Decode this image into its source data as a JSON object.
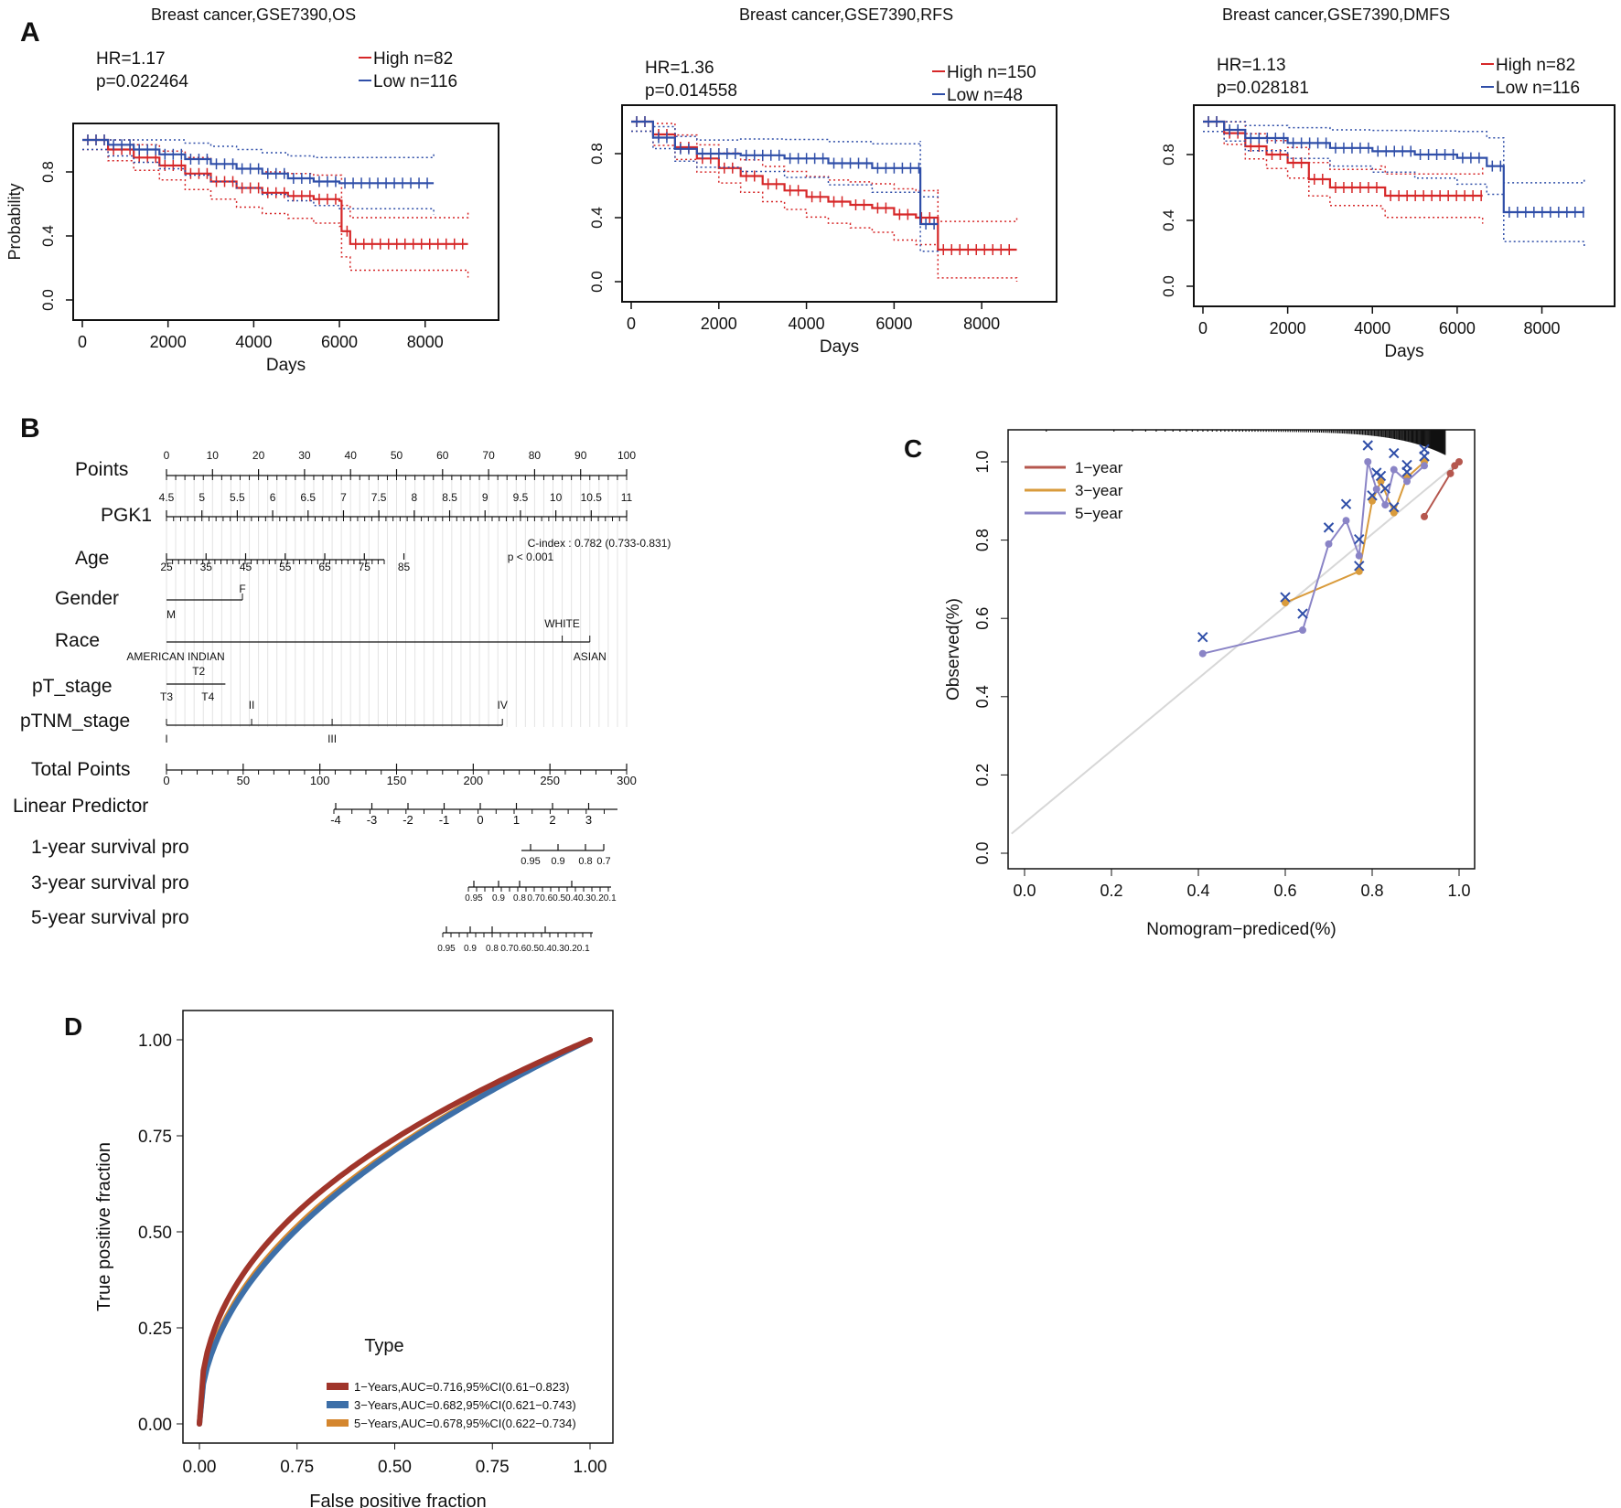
{
  "panels": {
    "A": {
      "letter": "A",
      "charts": [
        {
          "title": "Breast cancer,GSE7390,OS",
          "hr": "HR=1.17",
          "p": "p=0.022464",
          "legend_high": "High n=82",
          "legend_low": "Low  n=116",
          "ylabel": "Probability",
          "xlabel": "Days",
          "yticks": [
            "0.0",
            "0.4",
            "0.8"
          ],
          "xticks": [
            "0",
            "2000",
            "4000",
            "6000",
            "8000"
          ],
          "high": [
            [
              0,
              1
            ],
            [
              600,
              0.94
            ],
            [
              1200,
              0.89
            ],
            [
              1800,
              0.84
            ],
            [
              2400,
              0.79
            ],
            [
              3000,
              0.74
            ],
            [
              3600,
              0.7
            ],
            [
              4200,
              0.67
            ],
            [
              4800,
              0.65
            ],
            [
              5400,
              0.63
            ],
            [
              6000,
              0.62
            ],
            [
              6050,
              0.43
            ],
            [
              6250,
              0.35
            ],
            [
              9000,
              0.35
            ]
          ],
          "low": [
            [
              0,
              1
            ],
            [
              600,
              0.97
            ],
            [
              1200,
              0.94
            ],
            [
              1800,
              0.91
            ],
            [
              2400,
              0.88
            ],
            [
              3000,
              0.85
            ],
            [
              3600,
              0.82
            ],
            [
              4200,
              0.79
            ],
            [
              4800,
              0.76
            ],
            [
              5400,
              0.74
            ],
            [
              6000,
              0.73
            ],
            [
              8200,
              0.73
            ]
          ]
        },
        {
          "title": "Breast cancer,GSE7390,RFS",
          "hr": "HR=1.36",
          "p": "p=0.014558",
          "legend_high": "High n=150",
          "legend_low": "Low  n=48",
          "ylabel": "",
          "xlabel": "Days",
          "yticks": [
            "0.0",
            "0.4",
            "0.8"
          ],
          "xticks": [
            "0",
            "2000",
            "4000",
            "6000",
            "8000"
          ],
          "high": [
            [
              0,
              1
            ],
            [
              500,
              0.92
            ],
            [
              1000,
              0.84
            ],
            [
              1500,
              0.77
            ],
            [
              2000,
              0.71
            ],
            [
              2500,
              0.66
            ],
            [
              3000,
              0.61
            ],
            [
              3500,
              0.57
            ],
            [
              4000,
              0.53
            ],
            [
              4500,
              0.5
            ],
            [
              5000,
              0.48
            ],
            [
              5500,
              0.46
            ],
            [
              6000,
              0.42
            ],
            [
              6500,
              0.4
            ],
            [
              7000,
              0.4
            ],
            [
              7000,
              0.2
            ],
            [
              8800,
              0.2
            ]
          ],
          "low": [
            [
              0,
              1
            ],
            [
              500,
              0.9
            ],
            [
              1000,
              0.83
            ],
            [
              1500,
              0.8
            ],
            [
              2500,
              0.79
            ],
            [
              3500,
              0.77
            ],
            [
              4500,
              0.74
            ],
            [
              5500,
              0.71
            ],
            [
              6600,
              0.71
            ],
            [
              6600,
              0.36
            ],
            [
              7000,
              0.36
            ]
          ]
        },
        {
          "title": "Breast cancer,GSE7390,DMFS",
          "hr": "HR=1.13",
          "p": "p=0.028181",
          "legend_high": "High n=82",
          "legend_low": "Low  n=116",
          "ylabel": "",
          "xlabel": "Days",
          "yticks": [
            "0.0",
            "0.4",
            "0.8"
          ],
          "xticks": [
            "0",
            "2000",
            "4000",
            "6000",
            "8000"
          ],
          "high": [
            [
              0,
              1
            ],
            [
              500,
              0.93
            ],
            [
              1000,
              0.85
            ],
            [
              1500,
              0.8
            ],
            [
              2000,
              0.75
            ],
            [
              2500,
              0.65
            ],
            [
              3000,
              0.6
            ],
            [
              4200,
              0.6
            ],
            [
              4300,
              0.55
            ],
            [
              6600,
              0.55
            ]
          ],
          "low": [
            [
              0,
              1
            ],
            [
              500,
              0.95
            ],
            [
              1000,
              0.9
            ],
            [
              2000,
              0.87
            ],
            [
              3000,
              0.84
            ],
            [
              4000,
              0.82
            ],
            [
              5000,
              0.8
            ],
            [
              6000,
              0.78
            ],
            [
              6700,
              0.73
            ],
            [
              7100,
              0.68
            ],
            [
              7100,
              0.45
            ],
            [
              9000,
              0.45
            ]
          ]
        }
      ]
    },
    "B": {
      "letter": "B",
      "rows": [
        {
          "label": "Points",
          "ticks": [
            "0",
            "10",
            "20",
            "30",
            "40",
            "50",
            "60",
            "70",
            "80",
            "90",
            "100"
          ]
        },
        {
          "label": "PGK1",
          "ticks": [
            "4.5",
            "5",
            "5.5",
            "6",
            "6.5",
            "7",
            "7.5",
            "8",
            "8.5",
            "9",
            "9.5",
            "10",
            "10.5",
            "11"
          ]
        },
        {
          "label": "Age",
          "ticks": [
            "25",
            "35",
            "45",
            "55",
            "65",
            "75",
            "85"
          ]
        },
        {
          "label": "Gender",
          "ticks": [
            "M",
            "F"
          ]
        },
        {
          "label": "Race",
          "ticks": [
            "AMERICAN INDIAN",
            "WHITE",
            "ASIAN"
          ]
        },
        {
          "label": "pT_stage",
          "ticks": [
            "T3",
            "T2",
            "T4"
          ]
        },
        {
          "label": "pTNM_stage",
          "ticks": [
            "I",
            "II",
            "III",
            "IV"
          ]
        },
        {
          "label": "Total Points",
          "ticks": [
            "0",
            "50",
            "100",
            "150",
            "200",
            "250",
            "300"
          ]
        },
        {
          "label": "Linear Predictor",
          "ticks": [
            "-4",
            "-3",
            "-2",
            "-1",
            "0",
            "1",
            "2",
            "3"
          ]
        },
        {
          "label": "1-year survival pro",
          "ticks": [
            "0.95",
            "0.9",
            "0.8",
            "0.7"
          ]
        },
        {
          "label": "3-year survival pro",
          "ticks": [
            "0.95",
            "0.9",
            "0.8",
            "0.70.60.50.40.30.20.1"
          ]
        },
        {
          "label": "5-year survival pro",
          "ticks": [
            "0.95",
            "0.9",
            "0.8",
            "0.70.60.50.40.30.20.1"
          ]
        }
      ],
      "cindex": "C-index : 0.782 (0.733-0.831)",
      "pval": "p < 0.001"
    },
    "C": {
      "letter": "C",
      "chart_data": {
        "type": "line",
        "xlabel": "Nomogram−prediced(%)",
        "ylabel": "Observed(%)",
        "xticks": [
          "0.0",
          "0.2",
          "0.4",
          "0.6",
          "0.8",
          "1.0"
        ],
        "yticks": [
          "0.0",
          "0.2",
          "0.4",
          "0.6",
          "0.8",
          "1.0"
        ],
        "legend": [
          {
            "name": "1−year",
            "color": "#b5574e"
          },
          {
            "name": "3−year",
            "color": "#d99b3c"
          },
          {
            "name": "5−year",
            "color": "#8a84c6"
          }
        ],
        "series": [
          {
            "name": "1−year",
            "x": [
              0.92,
              0.98,
              0.99,
              1.0
            ],
            "y": [
              0.86,
              0.97,
              0.99,
              1.0
            ]
          },
          {
            "name": "3−year",
            "x": [
              0.6,
              0.77,
              0.8,
              0.82,
              0.85,
              0.88,
              0.92
            ],
            "y": [
              0.64,
              0.72,
              0.9,
              0.95,
              0.87,
              0.96,
              1.0
            ]
          },
          {
            "name": "5−year",
            "x": [
              0.41,
              0.64,
              0.7,
              0.74,
              0.77,
              0.79,
              0.81,
              0.83,
              0.85,
              0.88,
              0.92
            ],
            "y": [
              0.51,
              0.57,
              0.79,
              0.85,
              0.76,
              1.0,
              0.93,
              0.89,
              0.98,
              0.95,
              0.99
            ]
          }
        ]
      }
    },
    "D": {
      "letter": "D",
      "chart_data": {
        "type": "line",
        "xlabel": "False positive fraction",
        "ylabel": "True positive fraction",
        "xticks": [
          "0.00",
          "0.75",
          "0.50",
          "0.75",
          "1.00"
        ],
        "yticks": [
          "0.00",
          "0.25",
          "0.50",
          "0.75",
          "1.00"
        ],
        "legend_title": "Type",
        "series": [
          {
            "name": "1−Years,AUC=0.716,95%CI(0.61−0.823)",
            "color": "#a0352b",
            "exponent": 0.43
          },
          {
            "name": "3−Years,AUC=0.682,95%CI(0.621−0.743)",
            "color": "#3d6fa8",
            "exponent": 0.49
          },
          {
            "name": "5−Years,AUC=0.678,95%CI(0.622−0.734)",
            "color": "#d4862e",
            "exponent": 0.48
          }
        ]
      }
    }
  }
}
